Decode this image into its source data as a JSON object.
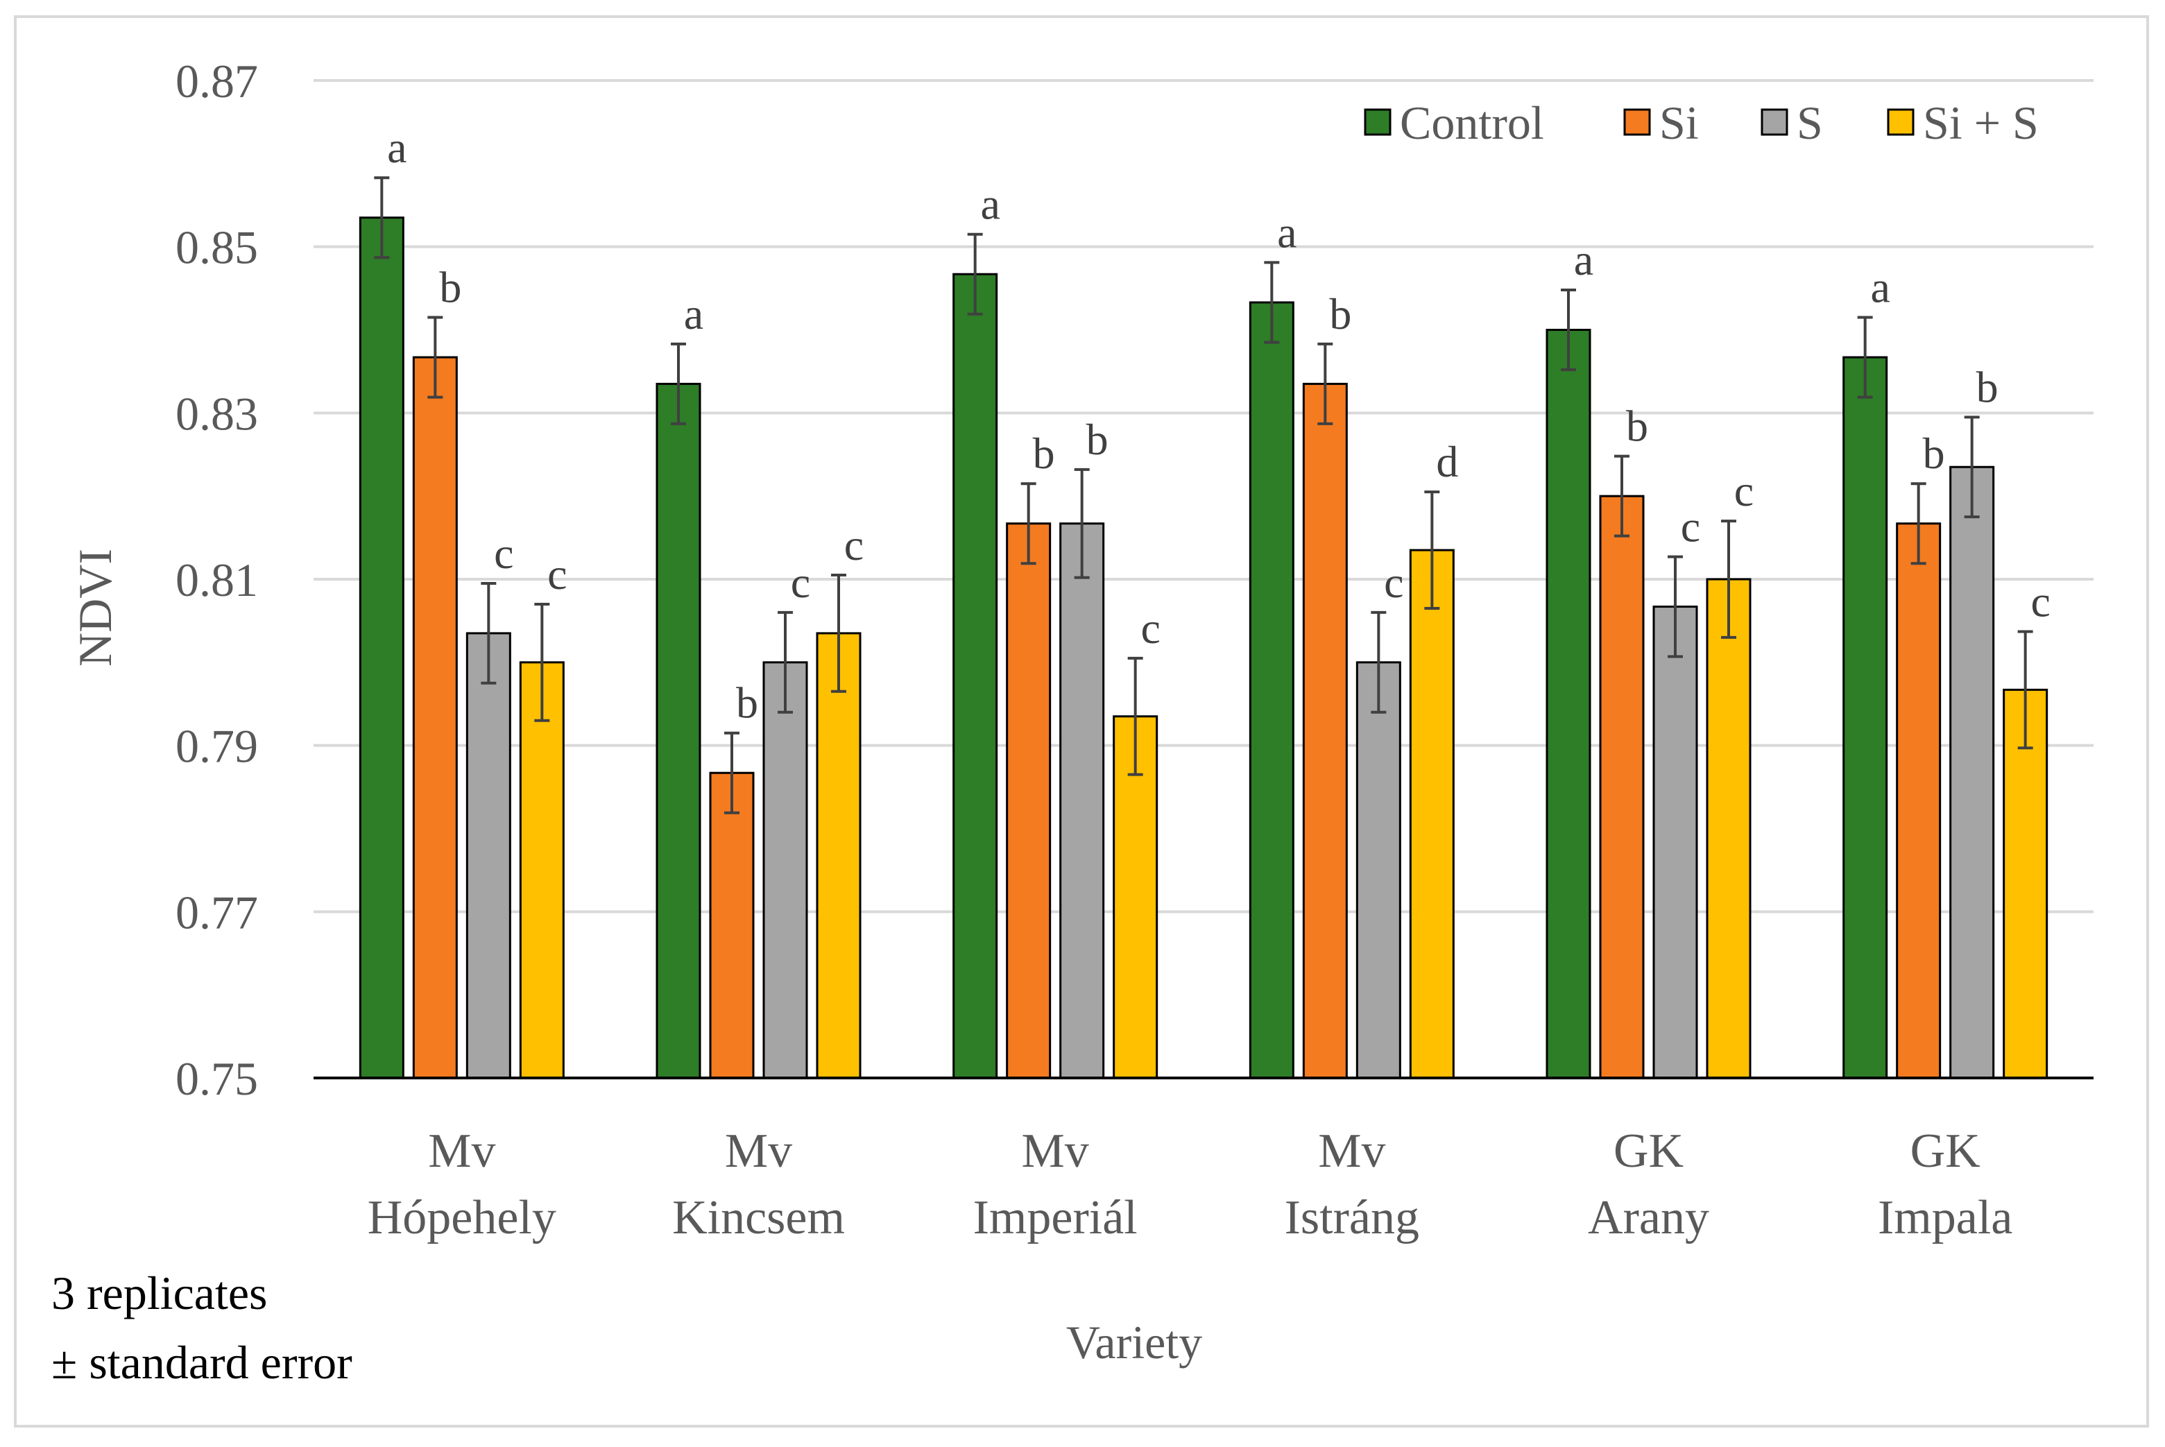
{
  "chart_data": {
    "type": "bar",
    "title": "",
    "xlabel": "Variety",
    "ylabel": "NDVI",
    "ylim": [
      0.75,
      0.87
    ],
    "yticks": [
      0.75,
      0.77,
      0.79,
      0.81,
      0.83,
      0.85,
      0.87
    ],
    "ytick_labels": [
      "0.75",
      "0.77",
      "0.79",
      "0.81",
      "0.83",
      "0.85",
      "0.87"
    ],
    "grid": "horizontal",
    "legend_position": "top-right",
    "categories": [
      [
        "Mv",
        "Hópehely"
      ],
      [
        "Mv",
        "Kincsem"
      ],
      [
        "Mv",
        "Imperiál"
      ],
      [
        "Mv",
        "Istráng"
      ],
      [
        "GK",
        "Arany"
      ],
      [
        "GK",
        "Impala"
      ]
    ],
    "series": [
      {
        "name": "Control",
        "color": "#2e7d27",
        "values": [
          0.8535,
          0.8335,
          0.8467,
          0.8433,
          0.84,
          0.8367
        ],
        "errors": [
          0.0048,
          0.0048,
          0.0048,
          0.0048,
          0.0048,
          0.0048
        ],
        "letters": [
          "a",
          "a",
          "a",
          "a",
          "a",
          "a"
        ]
      },
      {
        "name": "Si",
        "color": "#f47b20",
        "values": [
          0.8367,
          0.7867,
          0.8167,
          0.8335,
          0.82,
          0.8167
        ],
        "errors": [
          0.0048,
          0.0048,
          0.0048,
          0.0048,
          0.0048,
          0.0048
        ],
        "letters": [
          "b",
          "b",
          "b",
          "b",
          "b",
          "b"
        ]
      },
      {
        "name": "S",
        "color": "#a5a5a5",
        "values": [
          0.8035,
          0.8,
          0.8167,
          0.8,
          0.8067,
          0.8235
        ],
        "errors": [
          0.006,
          0.006,
          0.0065,
          0.006,
          0.006,
          0.006
        ],
        "letters": [
          "c",
          "c",
          "b",
          "c",
          "c",
          "b"
        ]
      },
      {
        "name": "Si + S",
        "color": "#ffc000",
        "values": [
          0.8,
          0.8035,
          0.7935,
          0.8135,
          0.81,
          0.7967
        ],
        "errors": [
          0.007,
          0.007,
          0.007,
          0.007,
          0.007,
          0.007
        ],
        "letters": [
          "c",
          "c",
          "c",
          "d",
          "c",
          "c"
        ]
      }
    ]
  },
  "notes": {
    "line1": "3 replicates",
    "line2": "± standard error"
  }
}
